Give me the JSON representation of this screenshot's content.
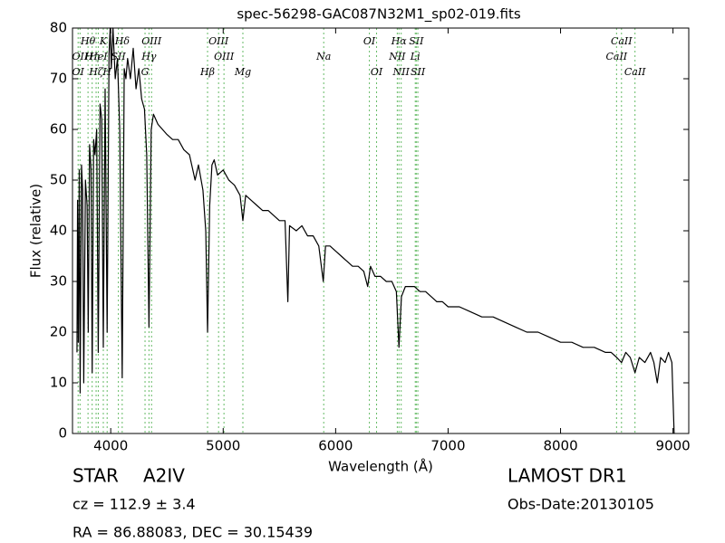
{
  "chart_data": {
    "type": "line",
    "title": "spec-56298-GAC087N32M1_sp02-019.fits",
    "x_label": "Wavelength (Å)",
    "y_label": "Flux (relative)",
    "xlim": [
      3660,
      9140
    ],
    "ylim": [
      0,
      80
    ],
    "xticks": [
      4000,
      5000,
      6000,
      7000,
      8000,
      9000
    ],
    "yticks": [
      0,
      10,
      20,
      30,
      40,
      50,
      60,
      70,
      80
    ],
    "color": "#000000",
    "line_marker_color": "#66bb66",
    "x": [
      3700,
      3705,
      3712,
      3720,
      3728,
      3740,
      3750,
      3760,
      3775,
      3790,
      3800,
      3812,
      3825,
      3835,
      3848,
      3860,
      3875,
      3889,
      3905,
      3920,
      3934,
      3950,
      3968,
      3985,
      3995,
      4005,
      4020,
      4040,
      4060,
      4080,
      4102,
      4120,
      4135,
      4150,
      4175,
      4200,
      4225,
      4250,
      4275,
      4300,
      4320,
      4340,
      4360,
      4380,
      4420,
      4460,
      4500,
      4550,
      4600,
      4650,
      4700,
      4750,
      4780,
      4820,
      4845,
      4861,
      4880,
      4900,
      4920,
      4950,
      5000,
      5050,
      5100,
      5150,
      5175,
      5200,
      5250,
      5300,
      5350,
      5400,
      5450,
      5500,
      5550,
      5575,
      5590,
      5650,
      5700,
      5750,
      5800,
      5850,
      5890,
      5910,
      5950,
      6000,
      6050,
      6100,
      6150,
      6200,
      6250,
      6285,
      6310,
      6350,
      6400,
      6450,
      6500,
      6540,
      6563,
      6585,
      6620,
      6660,
      6700,
      6750,
      6800,
      6850,
      6900,
      6950,
      7000,
      7100,
      7200,
      7300,
      7400,
      7500,
      7600,
      7700,
      7800,
      7900,
      8000,
      8100,
      8200,
      8300,
      8400,
      8450,
      8500,
      8542,
      8580,
      8620,
      8662,
      8700,
      8750,
      8800,
      8830,
      8860,
      8890,
      8930,
      8960,
      8990,
      9010
    ],
    "values": [
      16,
      46,
      18,
      52,
      8,
      53,
      48,
      10,
      50,
      45,
      20,
      57,
      52,
      12,
      58,
      55,
      60,
      16,
      65,
      62,
      17,
      68,
      20,
      75,
      80,
      72,
      80,
      70,
      74,
      60,
      11,
      72,
      70,
      74,
      70,
      76,
      68,
      72,
      66,
      64,
      55,
      21,
      60,
      63,
      61,
      60,
      59,
      58,
      58,
      56,
      55,
      50,
      53,
      48,
      40,
      20,
      45,
      53,
      54,
      51,
      52,
      50,
      49,
      47,
      42,
      47,
      46,
      45,
      44,
      44,
      43,
      42,
      42,
      26,
      41,
      40,
      41,
      39,
      39,
      37,
      30,
      37,
      37,
      36,
      35,
      34,
      33,
      33,
      32,
      29,
      33,
      31,
      31,
      30,
      30,
      28,
      17,
      27,
      29,
      29,
      29,
      28,
      28,
      27,
      26,
      26,
      25,
      25,
      24,
      23,
      23,
      22,
      21,
      20,
      20,
      19,
      18,
      18,
      17,
      17,
      16,
      16,
      15,
      14,
      16,
      15,
      12,
      15,
      14,
      16,
      14,
      10,
      15,
      14,
      16,
      14,
      0
    ],
    "spectral_lines": [
      [
        {
          "label": "Hθ",
          "x": 3798
        },
        {
          "label": "K",
          "x": 3934
        },
        {
          "label": "Hδ",
          "x": 4102
        },
        {
          "label": "OIII",
          "x": 4363
        },
        {
          "label": "OIII",
          "x": 4959
        },
        {
          "label": "OI",
          "x": 6300
        },
        {
          "label": "Hα",
          "x": 6563
        },
        {
          "label": "SII",
          "x": 6717
        },
        {
          "label": "CaII",
          "x": 8542
        }
      ],
      [
        {
          "label": "OII",
          "x": 3727
        },
        {
          "label": "Hη",
          "x": 3835
        },
        {
          "label": "HeI",
          "x": 3889
        },
        {
          "label": "SII",
          "x": 4068
        },
        {
          "label": "Hγ",
          "x": 4340
        },
        {
          "label": "OIII",
          "x": 5007
        },
        {
          "label": "Na",
          "x": 5894
        },
        {
          "label": "NII",
          "x": 6548
        },
        {
          "label": "Li",
          "x": 6708
        },
        {
          "label": "CaII",
          "x": 8498
        }
      ],
      [
        {
          "label": "OI",
          "x": 3710
        },
        {
          "label": "Hζ",
          "x": 3870
        },
        {
          "label": "H",
          "x": 3968
        },
        {
          "label": "G",
          "x": 4305
        },
        {
          "label": "Hβ",
          "x": 4861
        },
        {
          "label": "Mg",
          "x": 5175
        },
        {
          "label": "OI",
          "x": 6364
        },
        {
          "label": "NII",
          "x": 6583
        },
        {
          "label": "SII",
          "x": 6731
        },
        {
          "label": "CaII",
          "x": 8662
        }
      ]
    ],
    "info": {
      "object_class": "STAR",
      "subclass": "A2IV",
      "redshift": "cz = 112.9 ± 3.4",
      "coordinates": "RA = 86.88083, DEC = 30.15439",
      "survey": "LAMOST DR1",
      "obs_date": "Obs-Date:20130105"
    }
  }
}
